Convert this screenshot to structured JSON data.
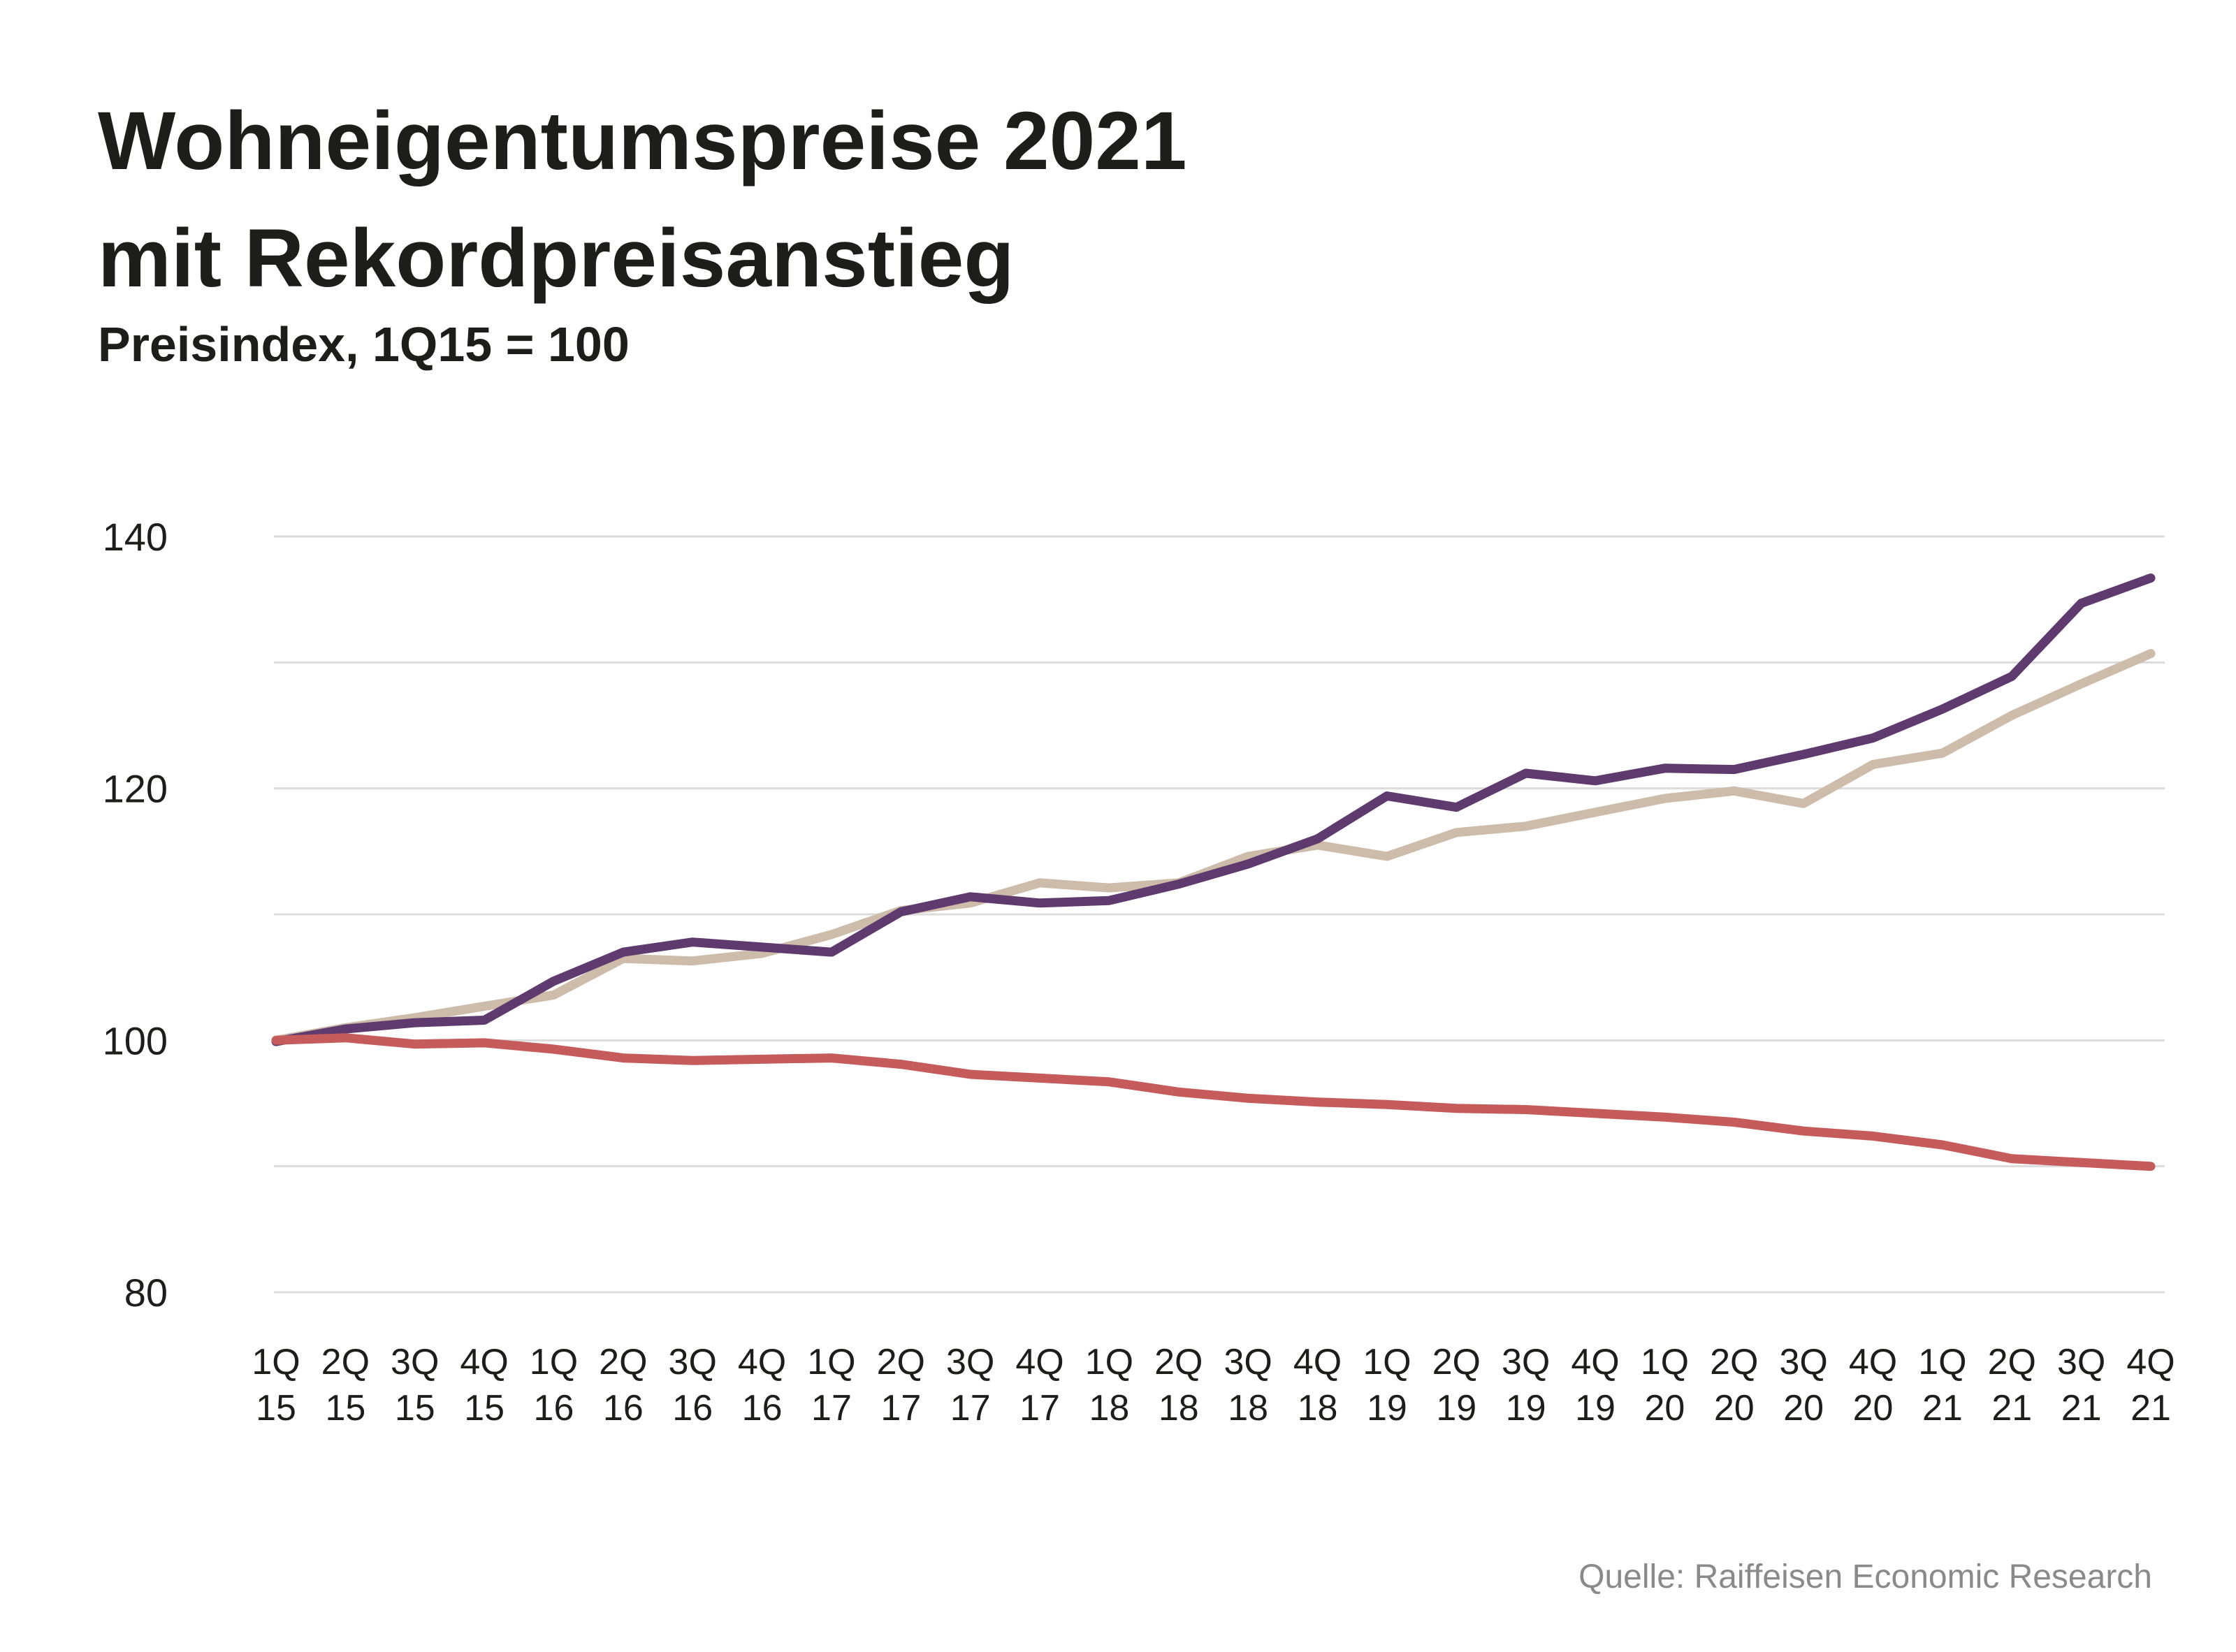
{
  "header": {
    "title_line1": "Wohneigentumspreise 2021",
    "title_line2": "mit Rekordpreisanstieg",
    "subtitle": "Preisindex, 1Q15 = 100"
  },
  "source": "Quelle: Raiffeisen Economic Research",
  "chart_data": {
    "type": "line",
    "title": "Wohneigentumspreise 2021 mit Rekordpreisanstieg",
    "subtitle": "Preisindex, 1Q15 = 100",
    "xlabel": "",
    "ylabel": "",
    "ylim": [
      80,
      140
    ],
    "yticks": [
      "80",
      "100",
      "120",
      "140"
    ],
    "grid": true,
    "legend": "none",
    "categories": [
      [
        "1Q",
        "15"
      ],
      [
        "2Q",
        "15"
      ],
      [
        "3Q",
        "15"
      ],
      [
        "4Q",
        "15"
      ],
      [
        "1Q",
        "16"
      ],
      [
        "2Q",
        "16"
      ],
      [
        "3Q",
        "16"
      ],
      [
        "4Q",
        "16"
      ],
      [
        "1Q",
        "17"
      ],
      [
        "2Q",
        "17"
      ],
      [
        "3Q",
        "17"
      ],
      [
        "4Q",
        "17"
      ],
      [
        "1Q",
        "18"
      ],
      [
        "2Q",
        "18"
      ],
      [
        "3Q",
        "18"
      ],
      [
        "4Q",
        "18"
      ],
      [
        "1Q",
        "19"
      ],
      [
        "2Q",
        "19"
      ],
      [
        "3Q",
        "19"
      ],
      [
        "4Q",
        "19"
      ],
      [
        "1Q",
        "20"
      ],
      [
        "2Q",
        "20"
      ],
      [
        "3Q",
        "20"
      ],
      [
        "4Q",
        "20"
      ],
      [
        "1Q",
        "21"
      ],
      [
        "2Q",
        "21"
      ],
      [
        "3Q",
        "21"
      ],
      [
        "4Q",
        "21"
      ]
    ],
    "series": [
      {
        "name": "Series beige",
        "color": "#cdbcaa",
        "values": [
          100.0,
          101.0,
          101.8,
          102.7,
          103.6,
          106.5,
          106.3,
          106.9,
          108.4,
          110.3,
          110.9,
          112.5,
          112.1,
          112.5,
          114.6,
          115.5,
          114.6,
          116.5,
          117.0,
          118.1,
          119.2,
          119.8,
          118.8,
          121.9,
          122.8,
          125.8,
          128.3,
          130.7
        ]
      },
      {
        "name": "Series purple",
        "color": "#5e3a6e",
        "values": [
          99.9,
          100.9,
          101.4,
          101.6,
          104.7,
          107.0,
          107.8,
          107.4,
          107.0,
          110.2,
          111.4,
          110.9,
          111.1,
          112.4,
          114.0,
          116.0,
          119.4,
          118.5,
          121.2,
          120.6,
          121.6,
          121.5,
          122.7,
          124.0,
          126.3,
          128.9,
          134.7,
          136.7
        ]
      },
      {
        "name": "Series red",
        "color": "#c65b5b",
        "values": [
          100.0,
          100.2,
          99.7,
          99.8,
          99.3,
          98.6,
          98.4,
          98.5,
          98.6,
          98.1,
          97.3,
          97.0,
          96.7,
          95.9,
          95.4,
          95.1,
          94.9,
          94.6,
          94.5,
          94.2,
          93.9,
          93.5,
          92.8,
          92.4,
          91.7,
          90.6,
          90.3,
          90.0
        ]
      }
    ]
  }
}
